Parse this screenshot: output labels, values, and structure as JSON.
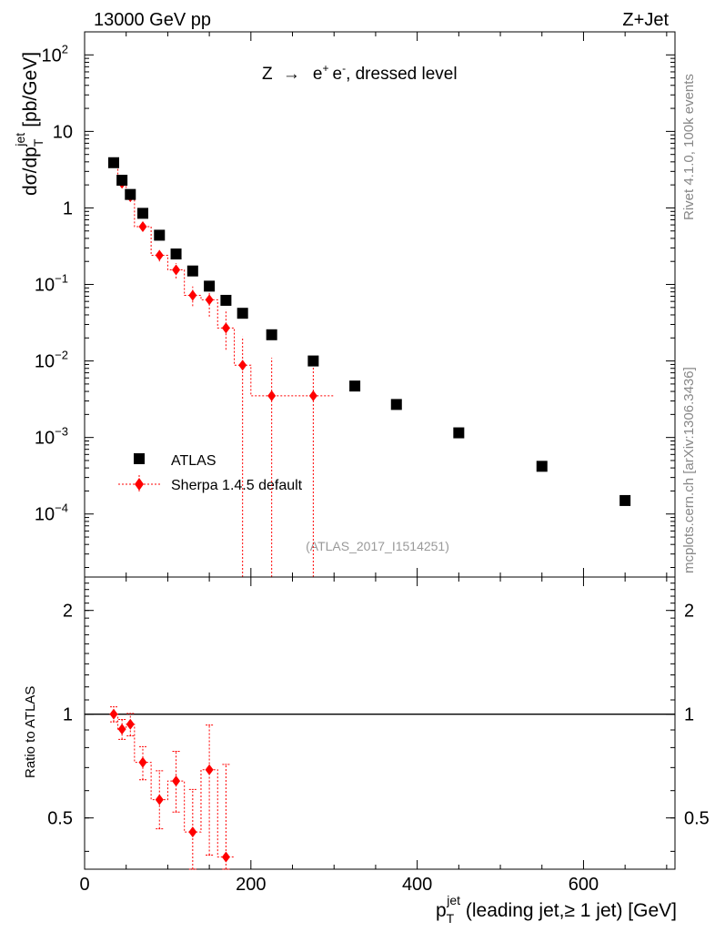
{
  "header": {
    "left": "13000 GeV pp",
    "right": "Z+Jet"
  },
  "side": {
    "rivet": "Rivet 4.1.0,  100k events",
    "mcplots": "mcplots.cern.ch [arXiv:1306.3436]"
  },
  "colors": {
    "data": "#000000",
    "mc": "#ff0000",
    "watermark": "#999999",
    "side_text": "#888888"
  },
  "chart_data": [
    {
      "type": "scatter",
      "title": "Z → e+ e-, dressed level",
      "title_parts": {
        "pre": "Z ",
        "arrow": "→",
        "e1": "e",
        "sup1": "+",
        "e2": "e",
        "sup2": "-",
        "post": ", dressed level"
      },
      "watermark": "(ATLAS_2017_I1514251)",
      "ylabel": "dσ/dp_T^jet [pb/GeV]",
      "ylabel_parts": {
        "main": "dσ/dp",
        "sub": "T",
        "sup": "jet",
        "unit": "[pb/GeV]"
      },
      "yscale": "log",
      "ylim": [
        1.5e-05,
        200
      ],
      "xlim": [
        0,
        710
      ],
      "yticks": [
        {
          "value": 100,
          "base": "10",
          "exp": "2"
        },
        {
          "value": 10,
          "base": "10",
          "exp": ""
        },
        {
          "value": 1,
          "base": "1",
          "exp": ""
        },
        {
          "value": 0.1,
          "base": "10",
          "exp": "−1"
        },
        {
          "value": 0.01,
          "base": "10",
          "exp": "−2"
        },
        {
          "value": 0.001,
          "base": "10",
          "exp": "−3"
        },
        {
          "value": 0.0001,
          "base": "10",
          "exp": "−4"
        }
      ],
      "legend": {
        "position": "bottom-left",
        "entries": [
          {
            "label": "ATLAS",
            "marker": "square"
          },
          {
            "label": "Sherpa 1.4.5 default",
            "marker": "diamond"
          }
        ]
      },
      "series": [
        {
          "name": "ATLAS",
          "marker": "square",
          "x": [
            35,
            45,
            55,
            70,
            90,
            110,
            130,
            150,
            170,
            190,
            225,
            275,
            325,
            375,
            450,
            550,
            650
          ],
          "y": [
            3.9,
            2.3,
            1.5,
            0.85,
            0.44,
            0.25,
            0.15,
            0.095,
            0.062,
            0.042,
            0.022,
            0.01,
            0.0047,
            0.0027,
            0.00115,
            0.00042,
            0.00015
          ]
        },
        {
          "name": "Sherpa 1.4.5 default",
          "marker": "diamond",
          "x": [
            35,
            45,
            55,
            70,
            90,
            110,
            130,
            150,
            170,
            190,
            225,
            275
          ],
          "y": [
            3.9,
            2.1,
            1.4,
            0.57,
            0.24,
            0.155,
            0.072,
            0.063,
            0.027,
            0.0088,
            0.0035,
            0.0035
          ],
          "err_lo": [
            0.2,
            0.15,
            0.12,
            0.06,
            0.04,
            0.035,
            0.02,
            0.025,
            0.013,
            0.0088,
            0.0035,
            0.0035
          ],
          "err_hi": [
            0.2,
            0.15,
            0.12,
            0.06,
            0.04,
            0.035,
            0.022,
            0.03,
            0.02,
            0.012,
            0.0075,
            0.0075
          ],
          "xerr": [
            5,
            5,
            5,
            10,
            10,
            10,
            10,
            10,
            10,
            10,
            25,
            25
          ]
        }
      ]
    },
    {
      "type": "scatter",
      "ylabel": "Ratio to ATLAS",
      "xlabel": "p_T^jet (leading jet,≥ 1 jet) [GeV]",
      "xlabel_parts": {
        "main": "p",
        "sub": "T",
        "sup": "jet",
        "rest": " (leading jet,≥ 1 jet) [GeV]"
      },
      "yscale": "log",
      "ylim": [
        0.355,
        2.5
      ],
      "xlim": [
        0,
        710
      ],
      "yticks": [
        {
          "value": 2,
          "label": "2"
        },
        {
          "value": 1,
          "label": "1"
        },
        {
          "value": 0.5,
          "label": "0.5"
        }
      ],
      "xticks": [
        {
          "value": 0,
          "label": "0"
        },
        {
          "value": 200,
          "label": "200"
        },
        {
          "value": 400,
          "label": "400"
        },
        {
          "value": 600,
          "label": "600"
        }
      ],
      "reference_line": 1,
      "series": [
        {
          "name": "Sherpa 1.4.5 default",
          "marker": "diamond",
          "x": [
            35,
            45,
            55,
            70,
            90,
            110,
            130,
            150,
            170
          ],
          "y": [
            1.0,
            0.905,
            0.935,
            0.725,
            0.565,
            0.64,
            0.455,
            0.69,
            0.385
          ],
          "err_lo": [
            0.05,
            0.06,
            0.07,
            0.08,
            0.1,
            0.12,
            0.1,
            0.3,
            0.1
          ],
          "err_hi": [
            0.05,
            0.06,
            0.07,
            0.08,
            0.12,
            0.14,
            0.15,
            0.24,
            0.33
          ],
          "xerr": [
            5,
            5,
            5,
            10,
            10,
            10,
            10,
            10,
            10
          ]
        }
      ]
    }
  ]
}
